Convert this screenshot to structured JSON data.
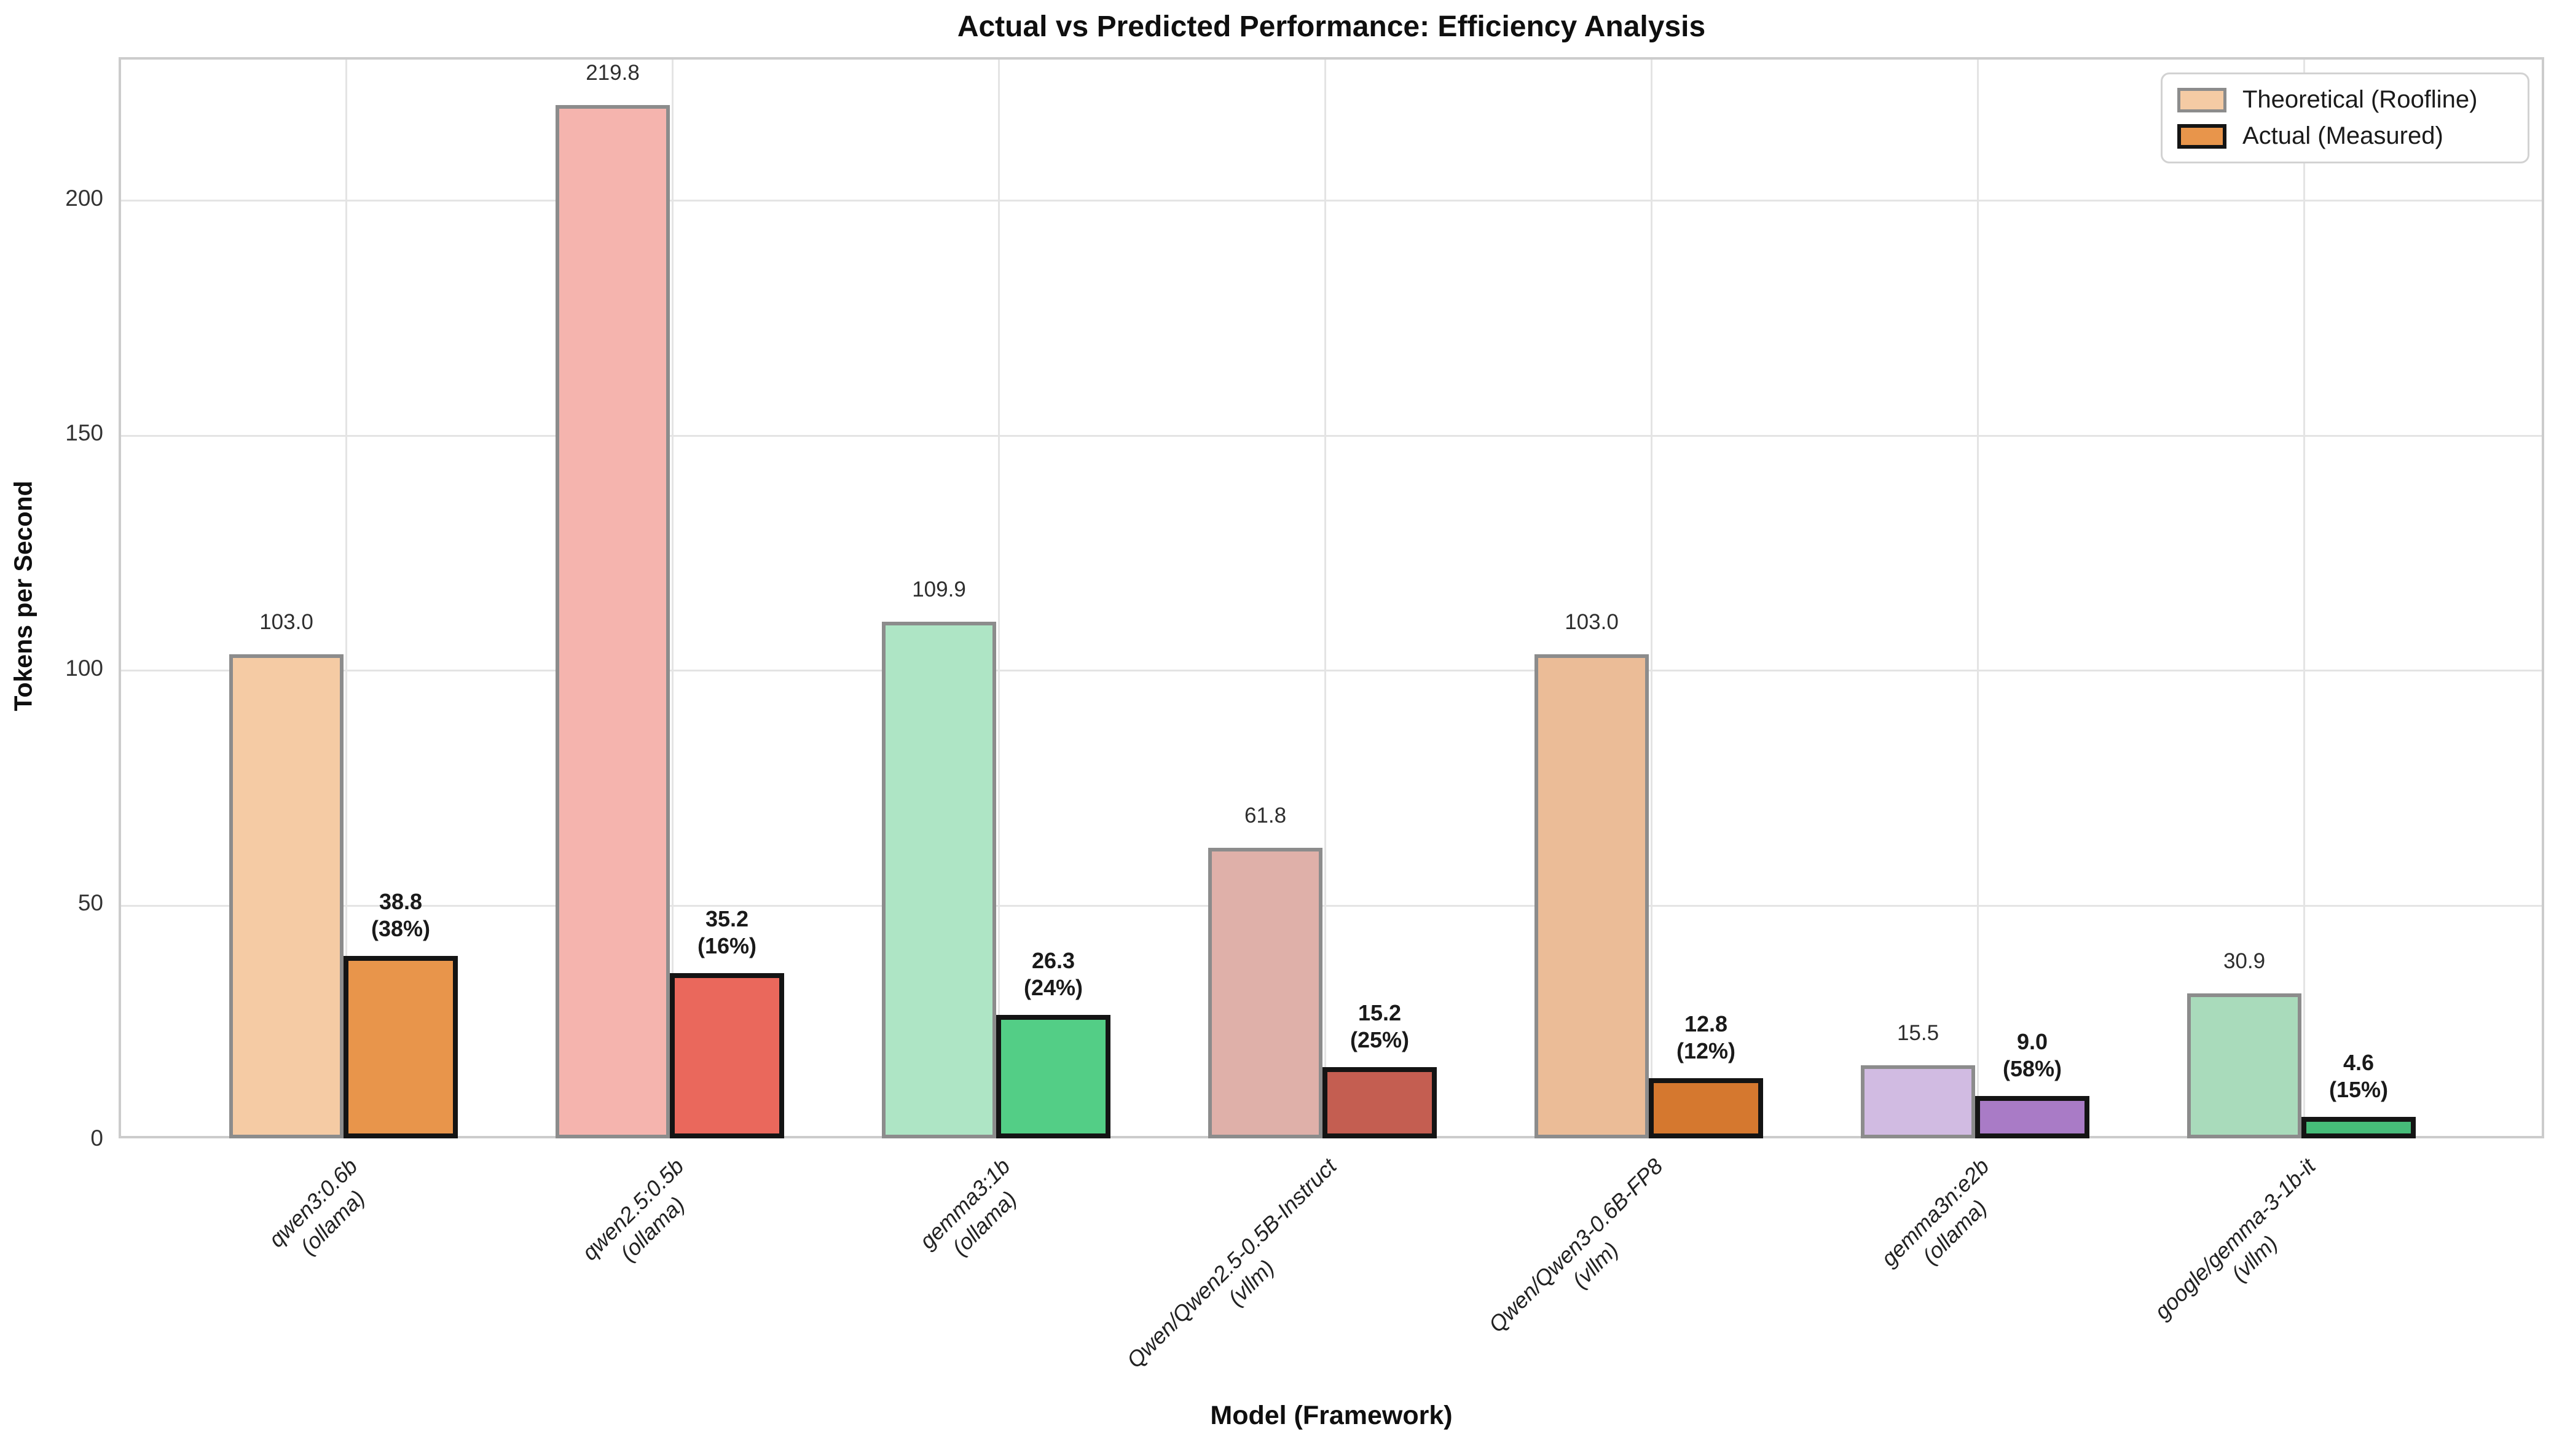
{
  "page": {
    "title": "Actual vs Predicted Performance: Efficiency Analysis"
  },
  "axes": {
    "ylabel": "Tokens per Second",
    "xlabel": "Model (Framework)"
  },
  "chart_data": {
    "type": "bar",
    "title": "Actual vs Predicted Performance: Efficiency Analysis",
    "xlabel": "Model (Framework)",
    "ylabel": "Tokens per Second",
    "ylim": [
      0,
      230
    ],
    "yticks": [
      0,
      50,
      100,
      150,
      200
    ],
    "grid": true,
    "legend_position": "upper right",
    "categories": [
      {
        "model": "qwen3:0.6b",
        "framework": "(ollama)"
      },
      {
        "model": "qwen2.5:0.5b",
        "framework": "(ollama)"
      },
      {
        "model": "gemma3:1b",
        "framework": "(ollama)"
      },
      {
        "model": "Qwen/Qwen2.5-0.5B-Instruct",
        "framework": "(vllm)"
      },
      {
        "model": "Qwen/Qwen3-0.6B-FP8",
        "framework": "(vllm)"
      },
      {
        "model": "gemma3n:e2b",
        "framework": "(ollama)"
      },
      {
        "model": "google/gemma-3-1b-it",
        "framework": "(vllm)"
      }
    ],
    "series": [
      {
        "name": "Theoretical (Roofline)",
        "values": [
          103.0,
          219.8,
          109.9,
          61.8,
          103.0,
          15.5,
          30.9
        ],
        "value_labels": [
          "103.0",
          "219.8",
          "109.9",
          "61.8",
          "103.0",
          "15.5",
          "30.9"
        ],
        "fills": [
          "#F5CBA4",
          "#F5B4AE",
          "#AEE5C5",
          "#DFB0A9",
          "#EBBC97",
          "#D1BBE2",
          "#A9DBBB"
        ],
        "edge_color": "#8C8C8C"
      },
      {
        "name": "Actual (Measured)",
        "values": [
          38.8,
          35.2,
          26.3,
          15.2,
          12.8,
          9.0,
          4.6
        ],
        "value_labels": [
          "38.8",
          "35.2",
          "26.3",
          "15.2",
          "12.8",
          "9.0",
          "4.6"
        ],
        "percent_labels": [
          "(38%)",
          "(16%)",
          "(24%)",
          "(25%)",
          "(12%)",
          "(58%)",
          "(15%)"
        ],
        "fills": [
          "#E8954B",
          "#EA685C",
          "#53CE86",
          "#C45E51",
          "#D5782F",
          "#A97BC6",
          "#46BC79"
        ],
        "edge_color": "#141414"
      }
    ]
  }
}
